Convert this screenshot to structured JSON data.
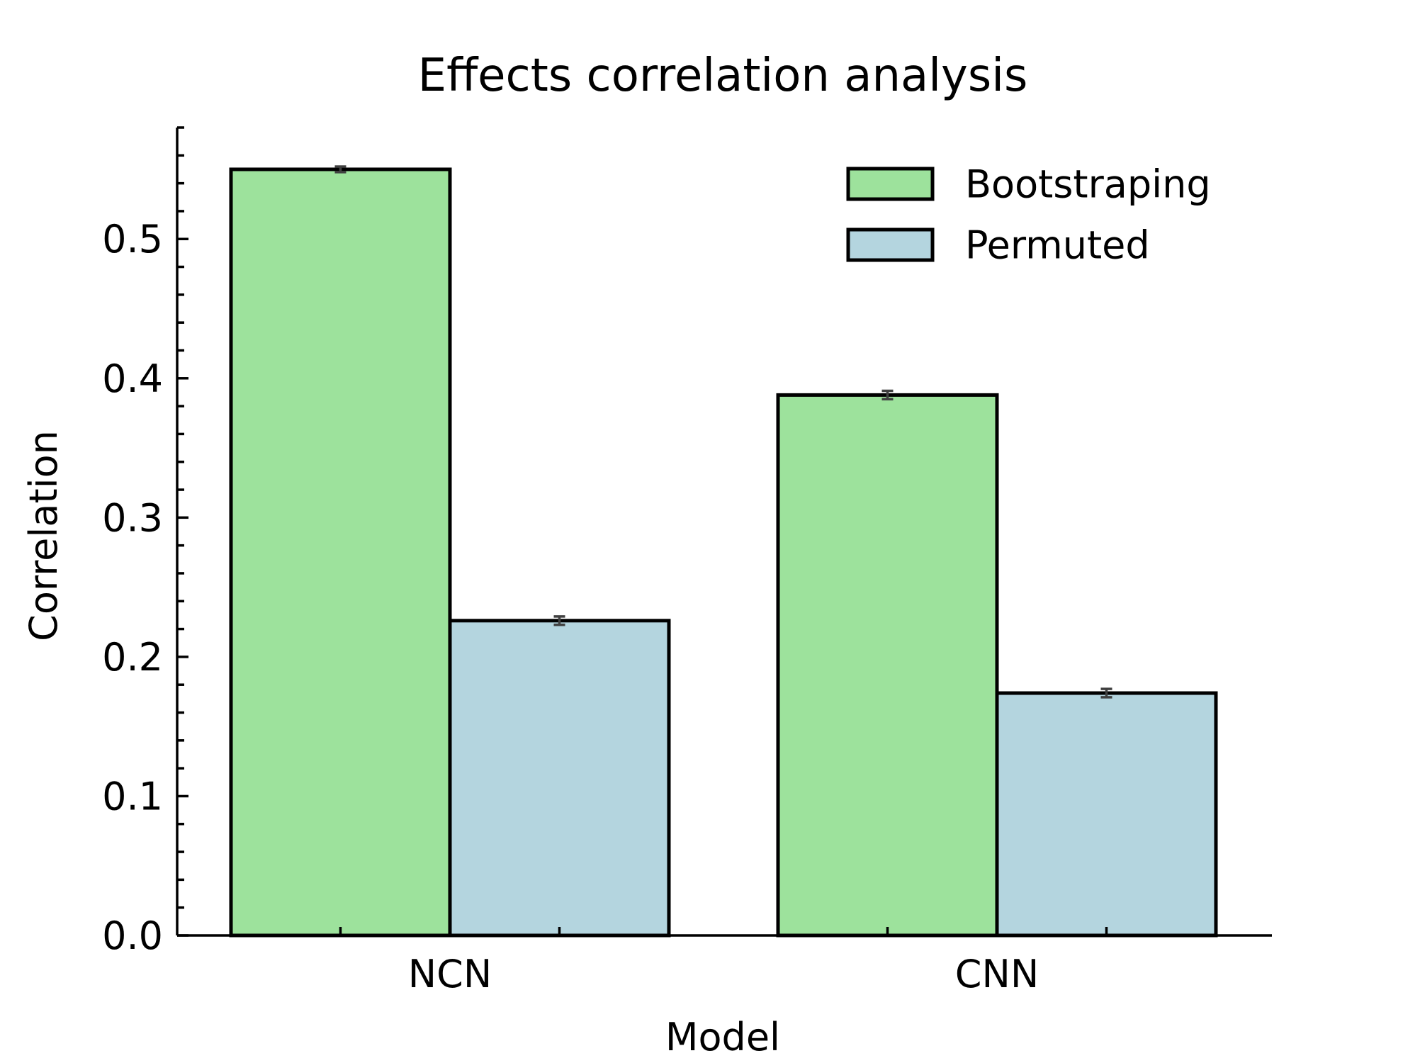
{
  "chart_data": {
    "type": "bar",
    "title": "Effects correlation analysis",
    "xlabel": "Model",
    "ylabel": "Correlation",
    "categories": [
      "NCN",
      "CNN"
    ],
    "series": [
      {
        "name": "Bootstraping",
        "color": "#9de29c",
        "values": [
          0.55,
          0.388
        ],
        "errors": [
          0.002,
          0.003
        ]
      },
      {
        "name": "Permuted",
        "color": "#b4d5df",
        "values": [
          0.226,
          0.174
        ],
        "errors": [
          0.003,
          0.003
        ]
      }
    ],
    "ylim": [
      0,
      0.58
    ],
    "y_ticks": [
      0.0,
      0.1,
      0.2,
      0.3,
      0.4,
      0.5
    ],
    "y_tick_labels": [
      "0.0",
      "0.1",
      "0.2",
      "0.3",
      "0.4",
      "0.5"
    ],
    "grid": false,
    "legend_position": "top-right"
  }
}
